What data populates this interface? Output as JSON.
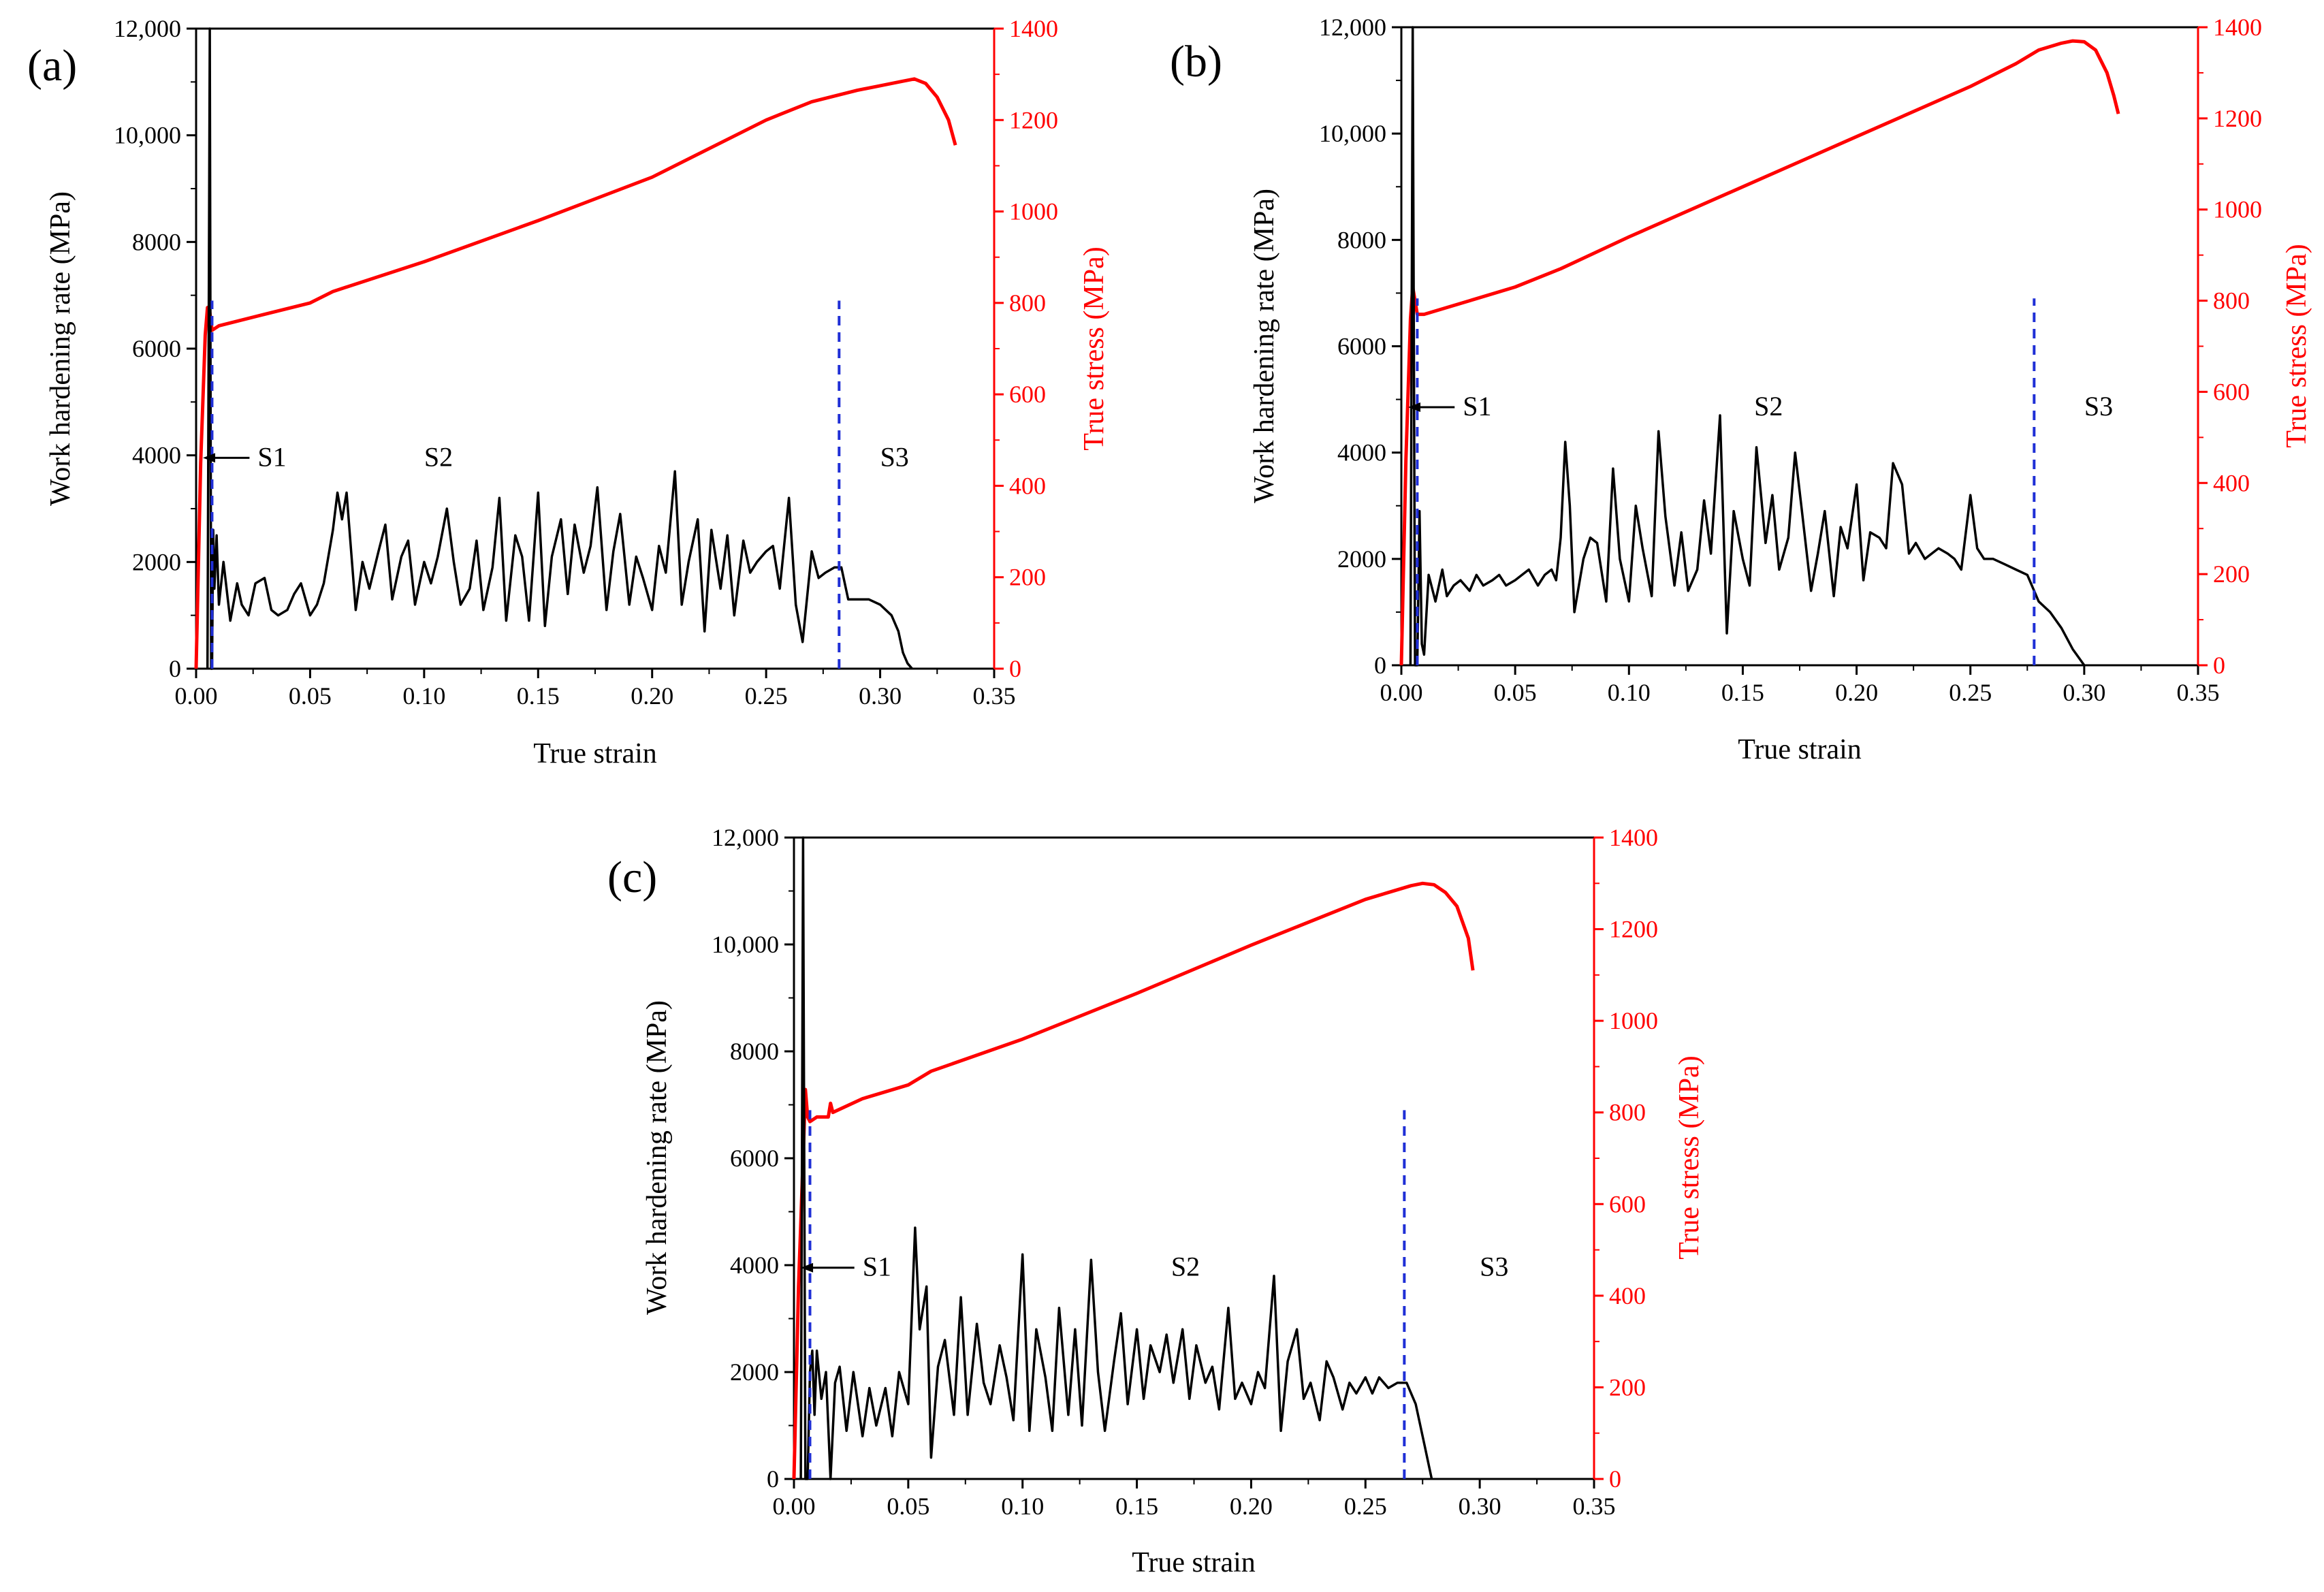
{
  "chart_data": [
    {
      "type": "line",
      "panel_label": "(a)",
      "xlabel": "True strain",
      "ylabel_left": "Work hardening rate (MPa)",
      "ylabel_right": "True stress (MPa)",
      "xlim": [
        0,
        0.35
      ],
      "ylim_left": [
        0,
        12000
      ],
      "ylim_right": [
        0,
        1400
      ],
      "x_ticks": [
        "0.00",
        "0.05",
        "0.10",
        "0.15",
        "0.20",
        "0.25",
        "0.30",
        "0.35"
      ],
      "y_left_ticks": [
        "0",
        "2000",
        "4000",
        "6000",
        "8000",
        "10,000",
        "12,000"
      ],
      "y_right_ticks": [
        "0",
        "200",
        "400",
        "600",
        "800",
        "1000",
        "1200",
        "1400"
      ],
      "stage_labels": [
        {
          "text": "S1",
          "x": 0.027,
          "y": 3800
        },
        {
          "text": "S2",
          "x": 0.1,
          "y": 3800
        },
        {
          "text": "S3",
          "x": 0.3,
          "y": 3800
        }
      ],
      "stage_boundaries": [
        {
          "x": 0.007,
          "y_top": 6900
        },
        {
          "x": 0.282,
          "y_top": 6900
        }
      ],
      "series": [
        {
          "name": "True stress (MPa)",
          "axis": "right",
          "color": "#ff0000",
          "x": [
            0.0,
            0.002,
            0.004,
            0.005,
            0.006,
            0.007,
            0.01,
            0.03,
            0.05,
            0.06,
            0.1,
            0.15,
            0.2,
            0.25,
            0.27,
            0.29,
            0.3,
            0.31,
            0.315,
            0.32,
            0.325,
            0.33,
            0.333
          ],
          "y": [
            0,
            450,
            730,
            790,
            780,
            740,
            750,
            775,
            800,
            825,
            890,
            980,
            1075,
            1200,
            1240,
            1265,
            1275,
            1285,
            1290,
            1280,
            1250,
            1200,
            1145
          ]
        },
        {
          "name": "Work hardening rate (MPa)",
          "axis": "left",
          "color": "#000000",
          "x": [
            0.005,
            0.006,
            0.0063,
            0.0066,
            0.007,
            0.0075,
            0.008,
            0.009,
            0.01,
            0.012,
            0.015,
            0.018,
            0.02,
            0.023,
            0.026,
            0.03,
            0.033,
            0.036,
            0.04,
            0.043,
            0.046,
            0.05,
            0.053,
            0.056,
            0.06,
            0.062,
            0.064,
            0.066,
            0.068,
            0.07,
            0.073,
            0.076,
            0.08,
            0.083,
            0.086,
            0.09,
            0.093,
            0.096,
            0.1,
            0.103,
            0.106,
            0.11,
            0.113,
            0.116,
            0.12,
            0.123,
            0.126,
            0.13,
            0.133,
            0.136,
            0.14,
            0.143,
            0.146,
            0.15,
            0.153,
            0.156,
            0.16,
            0.163,
            0.166,
            0.17,
            0.173,
            0.176,
            0.18,
            0.183,
            0.186,
            0.19,
            0.193,
            0.196,
            0.2,
            0.203,
            0.206,
            0.21,
            0.213,
            0.216,
            0.22,
            0.223,
            0.226,
            0.23,
            0.233,
            0.236,
            0.24,
            0.243,
            0.246,
            0.25,
            0.253,
            0.256,
            0.26,
            0.263,
            0.266,
            0.27,
            0.273,
            0.276,
            0.28,
            0.283,
            0.286,
            0.29,
            0.295,
            0.3,
            0.305,
            0.308,
            0.31,
            0.312,
            0.314
          ],
          "y": [
            0,
            12000,
            6000,
            0,
            0,
            2600,
            1500,
            2500,
            1200,
            2000,
            900,
            1600,
            1200,
            1000,
            1600,
            1700,
            1100,
            1000,
            1100,
            1400,
            1600,
            1000,
            1200,
            1600,
            2600,
            3300,
            2800,
            3300,
            2200,
            1100,
            2000,
            1500,
            2200,
            2700,
            1300,
            2100,
            2400,
            1200,
            2000,
            1600,
            2100,
            3000,
            2000,
            1200,
            1500,
            2400,
            1100,
            1900,
            3200,
            900,
            2500,
            2100,
            900,
            3300,
            800,
            2100,
            2800,
            1400,
            2700,
            1800,
            2300,
            3400,
            1100,
            2200,
            2900,
            1200,
            2100,
            1700,
            1100,
            2300,
            1800,
            3700,
            1200,
            2000,
            2800,
            700,
            2600,
            1500,
            2500,
            1000,
            2400,
            1800,
            2000,
            2200,
            2300,
            1500,
            3200,
            1200,
            500,
            2200,
            1700,
            1800,
            1900,
            1900,
            1300,
            1300,
            1300,
            1200,
            1000,
            700,
            300,
            100,
            0
          ]
        }
      ]
    },
    {
      "type": "line",
      "panel_label": "(b)",
      "xlabel": "True strain",
      "ylabel_left": "Work hardening rate (MPa)",
      "ylabel_right": "True stress (MPa)",
      "xlim": [
        0,
        0.35
      ],
      "ylim_left": [
        0,
        12000
      ],
      "ylim_right": [
        0,
        1400
      ],
      "x_ticks": [
        "0.00",
        "0.05",
        "0.10",
        "0.15",
        "0.20",
        "0.25",
        "0.30",
        "0.35"
      ],
      "y_left_ticks": [
        "0",
        "2000",
        "4000",
        "6000",
        "8000",
        "10,000",
        "12,000"
      ],
      "y_right_ticks": [
        "0",
        "200",
        "400",
        "600",
        "800",
        "1000",
        "1200",
        "1400"
      ],
      "stage_labels": [
        {
          "text": "S1",
          "x": 0.027,
          "y": 4700
        },
        {
          "text": "S2",
          "x": 0.155,
          "y": 4700
        },
        {
          "text": "S3",
          "x": 0.3,
          "y": 4700
        }
      ],
      "stage_boundaries": [
        {
          "x": 0.007,
          "y_top": 6900
        },
        {
          "x": 0.278,
          "y_top": 6900
        }
      ],
      "series": [
        {
          "name": "True stress (MPa)",
          "axis": "right",
          "color": "#ff0000",
          "x": [
            0.0,
            0.002,
            0.004,
            0.005,
            0.006,
            0.007,
            0.01,
            0.03,
            0.05,
            0.07,
            0.1,
            0.15,
            0.2,
            0.25,
            0.27,
            0.28,
            0.29,
            0.295,
            0.3,
            0.305,
            0.31,
            0.313,
            0.315
          ],
          "y": [
            0,
            450,
            760,
            830,
            800,
            770,
            770,
            800,
            830,
            870,
            940,
            1050,
            1160,
            1270,
            1320,
            1350,
            1365,
            1370,
            1368,
            1350,
            1300,
            1250,
            1210
          ]
        },
        {
          "name": "Work hardening rate (MPa)",
          "axis": "left",
          "color": "#000000",
          "x": [
            0.004,
            0.005,
            0.0055,
            0.006,
            0.007,
            0.008,
            0.009,
            0.01,
            0.012,
            0.015,
            0.018,
            0.02,
            0.023,
            0.026,
            0.03,
            0.033,
            0.036,
            0.04,
            0.043,
            0.046,
            0.05,
            0.053,
            0.056,
            0.06,
            0.063,
            0.066,
            0.068,
            0.07,
            0.072,
            0.074,
            0.076,
            0.08,
            0.083,
            0.086,
            0.09,
            0.093,
            0.096,
            0.1,
            0.103,
            0.106,
            0.11,
            0.113,
            0.116,
            0.12,
            0.123,
            0.126,
            0.13,
            0.133,
            0.136,
            0.14,
            0.143,
            0.146,
            0.15,
            0.153,
            0.156,
            0.16,
            0.163,
            0.166,
            0.17,
            0.173,
            0.176,
            0.18,
            0.183,
            0.186,
            0.19,
            0.193,
            0.196,
            0.2,
            0.203,
            0.206,
            0.21,
            0.213,
            0.216,
            0.22,
            0.223,
            0.226,
            0.23,
            0.233,
            0.236,
            0.24,
            0.243,
            0.246,
            0.25,
            0.253,
            0.256,
            0.26,
            0.265,
            0.27,
            0.275,
            0.28,
            0.285,
            0.29,
            0.295,
            0.3
          ],
          "y": [
            0,
            12000,
            6000,
            0,
            0,
            2900,
            400,
            200,
            1700,
            1200,
            1800,
            1300,
            1500,
            1600,
            1400,
            1700,
            1500,
            1600,
            1700,
            1500,
            1600,
            1700,
            1800,
            1500,
            1700,
            1800,
            1600,
            2400,
            4200,
            3000,
            1000,
            2000,
            2400,
            2300,
            1200,
            3700,
            2000,
            1200,
            3000,
            2200,
            1300,
            4400,
            2800,
            1500,
            2500,
            1400,
            1800,
            3100,
            2100,
            4700,
            600,
            2900,
            2000,
            1500,
            4100,
            2300,
            3200,
            1800,
            2400,
            4000,
            2900,
            1400,
            2100,
            2900,
            1300,
            2600,
            2200,
            3400,
            1600,
            2500,
            2400,
            2200,
            3800,
            3400,
            2100,
            2300,
            2000,
            2100,
            2200,
            2100,
            2000,
            1800,
            3200,
            2200,
            2000,
            2000,
            1900,
            1800,
            1700,
            1200,
            1000,
            700,
            300,
            0
          ]
        }
      ]
    },
    {
      "type": "line",
      "panel_label": "(c)",
      "xlabel": "True strain",
      "ylabel_left": "Work hardening rate (MPa)",
      "ylabel_right": "True stress (MPa)",
      "xlim": [
        0,
        0.35
      ],
      "ylim_left": [
        0,
        12000
      ],
      "ylim_right": [
        0,
        1400
      ],
      "x_ticks": [
        "0.00",
        "0.05",
        "0.10",
        "0.15",
        "0.20",
        "0.25",
        "0.30",
        "0.35"
      ],
      "y_left_ticks": [
        "0",
        "2000",
        "4000",
        "6000",
        "8000",
        "10,000",
        "12,000"
      ],
      "y_right_ticks": [
        "0",
        "200",
        "400",
        "600",
        "800",
        "1000",
        "1200",
        "1400"
      ],
      "stage_labels": [
        {
          "text": "S1",
          "x": 0.03,
          "y": 3800
        },
        {
          "text": "S2",
          "x": 0.165,
          "y": 3800
        },
        {
          "text": "S3",
          "x": 0.3,
          "y": 3800
        }
      ],
      "stage_boundaries": [
        {
          "x": 0.007,
          "y_top": 6900
        },
        {
          "x": 0.267,
          "y_top": 6900
        }
      ],
      "series": [
        {
          "name": "True stress (MPa)",
          "axis": "right",
          "color": "#ff0000",
          "x": [
            0.0,
            0.002,
            0.004,
            0.005,
            0.006,
            0.007,
            0.01,
            0.015,
            0.016,
            0.017,
            0.03,
            0.05,
            0.06,
            0.1,
            0.15,
            0.2,
            0.25,
            0.26,
            0.27,
            0.275,
            0.28,
            0.285,
            0.29,
            0.295,
            0.297
          ],
          "y": [
            0,
            420,
            700,
            850,
            790,
            780,
            790,
            790,
            820,
            800,
            830,
            860,
            890,
            960,
            1060,
            1165,
            1265,
            1280,
            1295,
            1300,
            1297,
            1280,
            1250,
            1180,
            1110
          ]
        },
        {
          "name": "Work hardening rate (MPa)",
          "axis": "left",
          "color": "#000000",
          "x": [
            0.003,
            0.004,
            0.0045,
            0.005,
            0.006,
            0.007,
            0.008,
            0.009,
            0.01,
            0.012,
            0.014,
            0.016,
            0.018,
            0.02,
            0.023,
            0.026,
            0.03,
            0.033,
            0.036,
            0.04,
            0.043,
            0.046,
            0.05,
            0.053,
            0.055,
            0.058,
            0.06,
            0.063,
            0.066,
            0.07,
            0.073,
            0.076,
            0.08,
            0.083,
            0.086,
            0.09,
            0.093,
            0.096,
            0.1,
            0.103,
            0.106,
            0.11,
            0.113,
            0.116,
            0.12,
            0.123,
            0.126,
            0.13,
            0.133,
            0.136,
            0.14,
            0.143,
            0.146,
            0.15,
            0.153,
            0.156,
            0.16,
            0.163,
            0.166,
            0.17,
            0.173,
            0.176,
            0.18,
            0.183,
            0.186,
            0.19,
            0.193,
            0.196,
            0.2,
            0.203,
            0.206,
            0.21,
            0.213,
            0.216,
            0.22,
            0.223,
            0.226,
            0.23,
            0.233,
            0.236,
            0.24,
            0.243,
            0.246,
            0.25,
            0.253,
            0.256,
            0.26,
            0.264,
            0.268,
            0.272,
            0.276,
            0.279
          ],
          "y": [
            0,
            12000,
            6000,
            0,
            0,
            2000,
            2400,
            1200,
            2400,
            1500,
            2000,
            0,
            1800,
            2100,
            900,
            2000,
            800,
            1700,
            1000,
            1700,
            800,
            2000,
            1400,
            4700,
            2800,
            3600,
            400,
            2100,
            2600,
            1200,
            3400,
            1200,
            2900,
            1800,
            1400,
            2500,
            1900,
            1100,
            4200,
            900,
            2800,
            1900,
            900,
            3200,
            1200,
            2800,
            1000,
            4100,
            2000,
            900,
            2200,
            3100,
            1400,
            2800,
            1500,
            2500,
            2000,
            2700,
            1800,
            2800,
            1500,
            2500,
            1800,
            2100,
            1300,
            3200,
            1500,
            1800,
            1400,
            2000,
            1700,
            3800,
            900,
            2200,
            2800,
            1500,
            1800,
            1100,
            2200,
            1900,
            1300,
            1800,
            1600,
            1900,
            1600,
            1900,
            1700,
            1800,
            1800,
            1400,
            600,
            0
          ]
        }
      ]
    }
  ]
}
